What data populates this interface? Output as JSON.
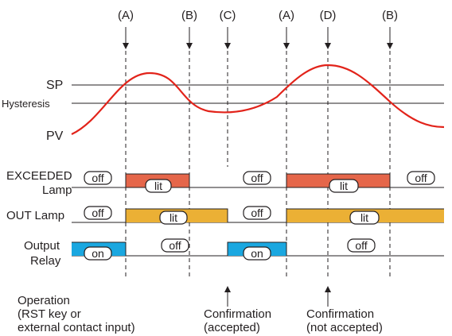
{
  "colors": {
    "pv_curve": "#e2231a",
    "exceeded_lamp": "#e5664a",
    "out_lamp": "#ebb035",
    "output_relay": "#1aa7e0",
    "line": "#231f20"
  },
  "events": [
    {
      "label": "(A)"
    },
    {
      "label": "(B)"
    },
    {
      "label": "(C)"
    },
    {
      "label": "(A)"
    },
    {
      "label": "(D)"
    },
    {
      "label": "(B)"
    }
  ],
  "levels": {
    "sp": "SP",
    "hysteresis": "Hysteresis",
    "pv": "PV"
  },
  "rows": {
    "exceeded": {
      "line1": "EXCEEDED",
      "line2": "Lamp"
    },
    "out": {
      "line1": "OUT Lamp"
    },
    "relay": {
      "line1": "Output",
      "line2": "Relay"
    }
  },
  "states": {
    "on": "on",
    "off": "off",
    "lit": "lit"
  },
  "bottom": {
    "operation": {
      "line1": "Operation",
      "line2": "(RST key or",
      "line3": "external contact input)"
    },
    "confirm_accepted": {
      "line1": "Confirmation",
      "line2": "(accepted)"
    },
    "confirm_not_accepted": {
      "line1": "Confirmation",
      "line2": "(not accepted)"
    }
  }
}
